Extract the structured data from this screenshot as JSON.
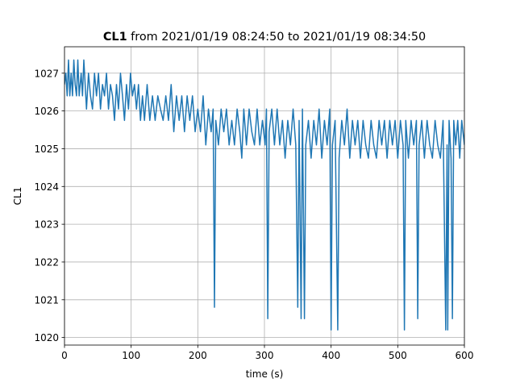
{
  "chart_data": {
    "type": "line",
    "title": {
      "name": "CL1",
      "text": "from 2021/01/19 08:24:50 to 2021/01/19 08:34:50"
    },
    "xlabel": "time (s)",
    "ylabel": "CL1",
    "xlim": [
      0,
      600
    ],
    "xticks": [
      0,
      100,
      200,
      300,
      400,
      500,
      600
    ],
    "ylim": [
      1019.8,
      1027.7
    ],
    "yticks": [
      1020,
      1021,
      1022,
      1023,
      1024,
      1025,
      1026,
      1027
    ],
    "grid": true,
    "series": [
      {
        "color": "#1f77b4",
        "x": [
          0,
          2,
          4,
          6,
          8,
          10,
          12,
          14,
          16,
          18,
          20,
          22,
          25,
          27,
          29,
          31,
          33,
          36,
          39,
          42,
          45,
          48,
          51,
          54,
          57,
          60,
          63,
          66,
          69,
          72,
          75,
          78,
          81,
          84,
          87,
          90,
          93,
          96,
          99,
          102,
          105,
          108,
          111,
          114,
          117,
          120,
          124,
          128,
          132,
          136,
          140,
          144,
          148,
          152,
          156,
          160,
          164,
          168,
          172,
          176,
          180,
          184,
          188,
          192,
          196,
          200,
          204,
          208,
          212,
          216,
          220,
          223,
          225,
          227,
          231,
          235,
          239,
          243,
          247,
          251,
          255,
          259,
          263,
          266,
          269,
          273,
          277,
          281,
          285,
          289,
          293,
          297,
          301,
          303,
          305,
          307,
          311,
          315,
          319,
          323,
          327,
          331,
          335,
          339,
          343,
          347,
          350,
          352,
          355,
          357,
          360,
          362,
          366,
          370,
          374,
          378,
          382,
          386,
          390,
          394,
          398,
          400,
          402,
          406,
          410,
          412,
          416,
          420,
          424,
          428,
          432,
          436,
          440,
          444,
          448,
          452,
          456,
          460,
          464,
          468,
          472,
          476,
          480,
          484,
          488,
          492,
          496,
          500,
          504,
          508,
          510,
          512,
          516,
          520,
          524,
          528,
          530,
          532,
          536,
          540,
          544,
          548,
          552,
          556,
          560,
          564,
          568,
          572,
          574,
          575,
          577,
          580,
          582,
          584,
          587,
          590,
          593,
          596,
          600
        ],
        "values": [
          1026.7,
          1027.0,
          1026.4,
          1027.35,
          1026.4,
          1027.0,
          1026.4,
          1027.35,
          1026.7,
          1026.4,
          1027.35,
          1026.4,
          1027.0,
          1026.4,
          1027.35,
          1026.7,
          1026.05,
          1027.0,
          1026.4,
          1026.05,
          1027.0,
          1026.4,
          1027.0,
          1026.05,
          1026.7,
          1026.4,
          1027.0,
          1026.05,
          1026.7,
          1026.4,
          1025.75,
          1026.7,
          1026.05,
          1027.0,
          1026.4,
          1025.75,
          1026.7,
          1026.05,
          1027.0,
          1026.4,
          1026.7,
          1026.05,
          1026.7,
          1025.75,
          1026.4,
          1025.75,
          1026.7,
          1025.75,
          1026.4,
          1025.75,
          1026.4,
          1026.05,
          1025.75,
          1026.4,
          1025.75,
          1026.7,
          1025.45,
          1026.4,
          1025.75,
          1026.4,
          1025.45,
          1026.4,
          1025.75,
          1026.4,
          1025.45,
          1026.05,
          1025.45,
          1026.4,
          1025.1,
          1026.05,
          1025.45,
          1026.05,
          1020.8,
          1025.75,
          1025.1,
          1026.05,
          1025.45,
          1026.05,
          1025.1,
          1025.75,
          1025.1,
          1026.05,
          1025.45,
          1024.75,
          1026.05,
          1025.1,
          1026.05,
          1025.45,
          1025.1,
          1026.05,
          1025.1,
          1025.75,
          1025.1,
          1026.05,
          1020.5,
          1025.45,
          1026.05,
          1025.1,
          1026.05,
          1025.1,
          1025.75,
          1024.75,
          1025.75,
          1025.1,
          1026.05,
          1025.1,
          1020.8,
          1025.75,
          1020.5,
          1026.05,
          1020.5,
          1025.1,
          1025.75,
          1024.75,
          1025.75,
          1025.1,
          1026.05,
          1024.75,
          1025.75,
          1025.1,
          1026.05,
          1020.2,
          1025.1,
          1025.75,
          1020.2,
          1024.75,
          1025.75,
          1025.1,
          1026.05,
          1024.75,
          1025.75,
          1025.1,
          1025.75,
          1024.75,
          1025.75,
          1025.1,
          1024.75,
          1025.75,
          1025.1,
          1024.75,
          1025.75,
          1025.1,
          1025.75,
          1024.75,
          1025.75,
          1025.1,
          1025.75,
          1024.75,
          1025.75,
          1025.1,
          1020.2,
          1025.75,
          1024.75,
          1025.75,
          1025.1,
          1025.75,
          1020.5,
          1025.1,
          1025.75,
          1024.75,
          1025.75,
          1025.1,
          1024.75,
          1025.75,
          1025.1,
          1024.75,
          1025.75,
          1020.2,
          1025.1,
          1020.2,
          1025.75,
          1024.75,
          1020.5,
          1025.75,
          1025.1,
          1025.75,
          1024.75,
          1025.75,
          1025.1
        ]
      }
    ]
  }
}
